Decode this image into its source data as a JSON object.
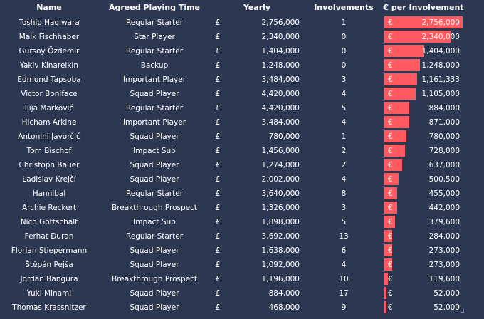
{
  "header": {
    "name": "Name",
    "playing_time": "Agreed Playing Time",
    "yearly": "Yearly",
    "involvements": "Involvements",
    "per_involvement": "€ per Involvement"
  },
  "currency_symbol": "£",
  "euro_symbol": "€",
  "bar_color": "#ff5a5f",
  "background_color": "#2c3752",
  "rows": [
    {
      "name": "Toshio Hagiwara",
      "playing_time": "Regular Starter",
      "yearly": "2,756,000",
      "involvements": "1",
      "per_involvement": "2,756,000",
      "per_involvement_value": 2756000
    },
    {
      "name": "Maik Fischhaber",
      "playing_time": "Star Player",
      "yearly": "2,340,000",
      "involvements": "0",
      "per_involvement": "2,340,000",
      "per_involvement_value": 2340000
    },
    {
      "name": "Gürsoy Özdemir",
      "playing_time": "Regular Starter",
      "yearly": "1,404,000",
      "involvements": "0",
      "per_involvement": "1,404,000",
      "per_involvement_value": 1404000
    },
    {
      "name": "Yakiv Kinareikin",
      "playing_time": "Backup",
      "yearly": "1,248,000",
      "involvements": "0",
      "per_involvement": "1,248,000",
      "per_involvement_value": 1248000
    },
    {
      "name": "Edmond Tapsoba",
      "playing_time": "Important Player",
      "yearly": "3,484,000",
      "involvements": "3",
      "per_involvement": "1,161,333",
      "per_involvement_value": 1161333
    },
    {
      "name": "Victor Boniface",
      "playing_time": "Squad Player",
      "yearly": "4,420,000",
      "involvements": "4",
      "per_involvement": "1,105,000",
      "per_involvement_value": 1105000
    },
    {
      "name": "Ilija Marković",
      "playing_time": "Regular Starter",
      "yearly": "4,420,000",
      "involvements": "5",
      "per_involvement": "884,000",
      "per_involvement_value": 884000
    },
    {
      "name": "Hicham Arkine",
      "playing_time": "Important Player",
      "yearly": "3,484,000",
      "involvements": "4",
      "per_involvement": "871,000",
      "per_involvement_value": 871000
    },
    {
      "name": "Antonini Javorčić",
      "playing_time": "Squad Player",
      "yearly": "780,000",
      "involvements": "1",
      "per_involvement": "780,000",
      "per_involvement_value": 780000
    },
    {
      "name": "Tom Bischof",
      "playing_time": "Impact Sub",
      "yearly": "1,456,000",
      "involvements": "2",
      "per_involvement": "728,000",
      "per_involvement_value": 728000
    },
    {
      "name": "Christoph Bauer",
      "playing_time": "Squad Player",
      "yearly": "1,274,000",
      "involvements": "2",
      "per_involvement": "637,000",
      "per_involvement_value": 637000
    },
    {
      "name": "Ladislav Krejčí",
      "playing_time": "Squad Player",
      "yearly": "2,002,000",
      "involvements": "4",
      "per_involvement": "500,500",
      "per_involvement_value": 500500
    },
    {
      "name": "Hannibal",
      "playing_time": "Regular Starter",
      "yearly": "3,640,000",
      "involvements": "8",
      "per_involvement": "455,000",
      "per_involvement_value": 455000
    },
    {
      "name": "Archie Reckert",
      "playing_time": "Breakthrough Prospect",
      "yearly": "1,326,000",
      "involvements": "3",
      "per_involvement": "442,000",
      "per_involvement_value": 442000
    },
    {
      "name": "Nico Gottschalt",
      "playing_time": "Impact Sub",
      "yearly": "1,898,000",
      "involvements": "5",
      "per_involvement": "379,600",
      "per_involvement_value": 379600
    },
    {
      "name": "Ferhat Duran",
      "playing_time": "Regular Starter",
      "yearly": "3,692,000",
      "involvements": "13",
      "per_involvement": "284,000",
      "per_involvement_value": 284000
    },
    {
      "name": "Florian Stiepermann",
      "playing_time": "Squad Player",
      "yearly": "1,638,000",
      "involvements": "6",
      "per_involvement": "273,000",
      "per_involvement_value": 273000
    },
    {
      "name": "Štěpán Pejša",
      "playing_time": "Squad Player",
      "yearly": "1,092,000",
      "involvements": "4",
      "per_involvement": "273,000",
      "per_involvement_value": 273000
    },
    {
      "name": "Jordan Bangura",
      "playing_time": "Breakthrough Prospect",
      "yearly": "1,196,000",
      "involvements": "10",
      "per_involvement": "119,600",
      "per_involvement_value": 119600
    },
    {
      "name": "Yuki Minami",
      "playing_time": "Squad Player",
      "yearly": "884,000",
      "involvements": "17",
      "per_involvement": "52,000",
      "per_involvement_value": 52000
    },
    {
      "name": "Thomas Krassnitzer",
      "playing_time": "Squad Player",
      "yearly": "468,000",
      "involvements": "9",
      "per_involvement": "52,000",
      "per_involvement_value": 52000
    }
  ]
}
